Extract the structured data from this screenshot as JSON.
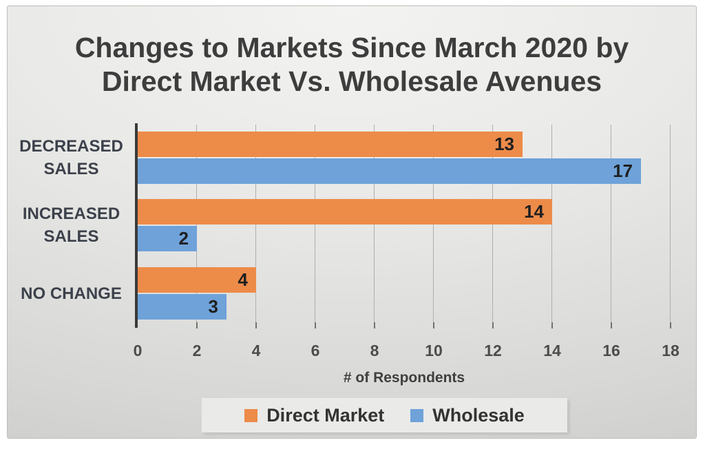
{
  "chart_data": {
    "type": "bar",
    "orientation": "horizontal",
    "title": "Changes to Markets Since March 2020 by Direct Market Vs. Wholesale Avenues",
    "title_lines": [
      "Changes to Markets Since March 2020 by",
      "Direct Market Vs. Wholesale Avenues"
    ],
    "categories": [
      "DECREASED SALES",
      "INCREASED SALES",
      "NO CHANGE"
    ],
    "series": [
      {
        "name": "Direct Market",
        "color": "#ED8B49",
        "values": [
          13,
          14,
          4
        ]
      },
      {
        "name": "Wholesale",
        "color": "#6EA2D9",
        "values": [
          17,
          2,
          3
        ]
      }
    ],
    "xlabel": "# of Respondents",
    "x_ticks": [
      0,
      2,
      4,
      6,
      8,
      10,
      12,
      14,
      16,
      18
    ],
    "xlim": [
      0,
      18
    ],
    "grid": "vertical",
    "legend_position": "bottom",
    "data_labels": "inside-end",
    "colors": {
      "title_text": "#3d3d3d",
      "category_text": "#3c414b",
      "tick_text": "#4c4c4c",
      "data_label_text": "#1f1f1f",
      "axis_line": "#3a3a3a",
      "gridline": "#aeaeac",
      "legend_bg": "#eaeae8",
      "chart_bg_top": "#f3f3f1",
      "chart_bg_bottom": "#c7c7c5"
    }
  }
}
